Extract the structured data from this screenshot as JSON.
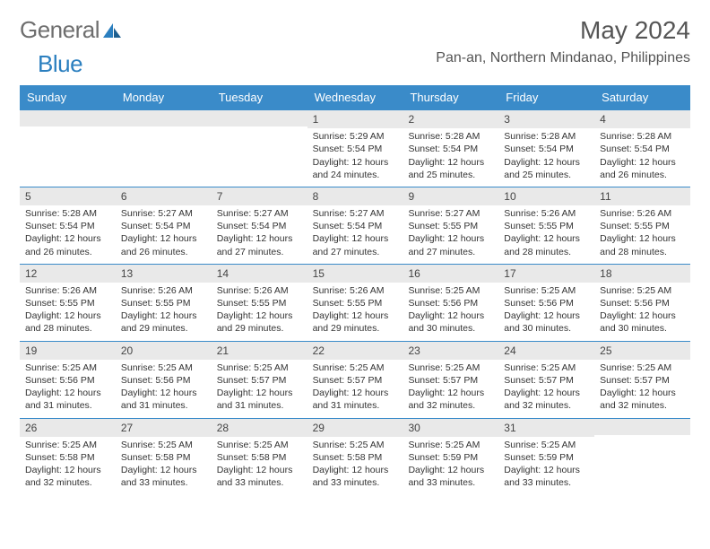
{
  "brand": {
    "part1": "General",
    "part2": "Blue"
  },
  "calendar": {
    "month_title": "May 2024",
    "location": "Pan-an, Northern Mindanao, Philippines",
    "colors": {
      "header_bg": "#3a8bc9",
      "header_text": "#ffffff",
      "daynum_bg": "#e9e9e9",
      "rule": "#3a8bc9",
      "body_text": "#333333",
      "title_text": "#555555"
    },
    "day_headers": [
      "Sunday",
      "Monday",
      "Tuesday",
      "Wednesday",
      "Thursday",
      "Friday",
      "Saturday"
    ],
    "weeks": [
      [
        {
          "n": "",
          "sunrise": "",
          "sunset": "",
          "daylight": ""
        },
        {
          "n": "",
          "sunrise": "",
          "sunset": "",
          "daylight": ""
        },
        {
          "n": "",
          "sunrise": "",
          "sunset": "",
          "daylight": ""
        },
        {
          "n": "1",
          "sunrise": "Sunrise: 5:29 AM",
          "sunset": "Sunset: 5:54 PM",
          "daylight": "Daylight: 12 hours and 24 minutes."
        },
        {
          "n": "2",
          "sunrise": "Sunrise: 5:28 AM",
          "sunset": "Sunset: 5:54 PM",
          "daylight": "Daylight: 12 hours and 25 minutes."
        },
        {
          "n": "3",
          "sunrise": "Sunrise: 5:28 AM",
          "sunset": "Sunset: 5:54 PM",
          "daylight": "Daylight: 12 hours and 25 minutes."
        },
        {
          "n": "4",
          "sunrise": "Sunrise: 5:28 AM",
          "sunset": "Sunset: 5:54 PM",
          "daylight": "Daylight: 12 hours and 26 minutes."
        }
      ],
      [
        {
          "n": "5",
          "sunrise": "Sunrise: 5:28 AM",
          "sunset": "Sunset: 5:54 PM",
          "daylight": "Daylight: 12 hours and 26 minutes."
        },
        {
          "n": "6",
          "sunrise": "Sunrise: 5:27 AM",
          "sunset": "Sunset: 5:54 PM",
          "daylight": "Daylight: 12 hours and 26 minutes."
        },
        {
          "n": "7",
          "sunrise": "Sunrise: 5:27 AM",
          "sunset": "Sunset: 5:54 PM",
          "daylight": "Daylight: 12 hours and 27 minutes."
        },
        {
          "n": "8",
          "sunrise": "Sunrise: 5:27 AM",
          "sunset": "Sunset: 5:54 PM",
          "daylight": "Daylight: 12 hours and 27 minutes."
        },
        {
          "n": "9",
          "sunrise": "Sunrise: 5:27 AM",
          "sunset": "Sunset: 5:55 PM",
          "daylight": "Daylight: 12 hours and 27 minutes."
        },
        {
          "n": "10",
          "sunrise": "Sunrise: 5:26 AM",
          "sunset": "Sunset: 5:55 PM",
          "daylight": "Daylight: 12 hours and 28 minutes."
        },
        {
          "n": "11",
          "sunrise": "Sunrise: 5:26 AM",
          "sunset": "Sunset: 5:55 PM",
          "daylight": "Daylight: 12 hours and 28 minutes."
        }
      ],
      [
        {
          "n": "12",
          "sunrise": "Sunrise: 5:26 AM",
          "sunset": "Sunset: 5:55 PM",
          "daylight": "Daylight: 12 hours and 28 minutes."
        },
        {
          "n": "13",
          "sunrise": "Sunrise: 5:26 AM",
          "sunset": "Sunset: 5:55 PM",
          "daylight": "Daylight: 12 hours and 29 minutes."
        },
        {
          "n": "14",
          "sunrise": "Sunrise: 5:26 AM",
          "sunset": "Sunset: 5:55 PM",
          "daylight": "Daylight: 12 hours and 29 minutes."
        },
        {
          "n": "15",
          "sunrise": "Sunrise: 5:26 AM",
          "sunset": "Sunset: 5:55 PM",
          "daylight": "Daylight: 12 hours and 29 minutes."
        },
        {
          "n": "16",
          "sunrise": "Sunrise: 5:25 AM",
          "sunset": "Sunset: 5:56 PM",
          "daylight": "Daylight: 12 hours and 30 minutes."
        },
        {
          "n": "17",
          "sunrise": "Sunrise: 5:25 AM",
          "sunset": "Sunset: 5:56 PM",
          "daylight": "Daylight: 12 hours and 30 minutes."
        },
        {
          "n": "18",
          "sunrise": "Sunrise: 5:25 AM",
          "sunset": "Sunset: 5:56 PM",
          "daylight": "Daylight: 12 hours and 30 minutes."
        }
      ],
      [
        {
          "n": "19",
          "sunrise": "Sunrise: 5:25 AM",
          "sunset": "Sunset: 5:56 PM",
          "daylight": "Daylight: 12 hours and 31 minutes."
        },
        {
          "n": "20",
          "sunrise": "Sunrise: 5:25 AM",
          "sunset": "Sunset: 5:56 PM",
          "daylight": "Daylight: 12 hours and 31 minutes."
        },
        {
          "n": "21",
          "sunrise": "Sunrise: 5:25 AM",
          "sunset": "Sunset: 5:57 PM",
          "daylight": "Daylight: 12 hours and 31 minutes."
        },
        {
          "n": "22",
          "sunrise": "Sunrise: 5:25 AM",
          "sunset": "Sunset: 5:57 PM",
          "daylight": "Daylight: 12 hours and 31 minutes."
        },
        {
          "n": "23",
          "sunrise": "Sunrise: 5:25 AM",
          "sunset": "Sunset: 5:57 PM",
          "daylight": "Daylight: 12 hours and 32 minutes."
        },
        {
          "n": "24",
          "sunrise": "Sunrise: 5:25 AM",
          "sunset": "Sunset: 5:57 PM",
          "daylight": "Daylight: 12 hours and 32 minutes."
        },
        {
          "n": "25",
          "sunrise": "Sunrise: 5:25 AM",
          "sunset": "Sunset: 5:57 PM",
          "daylight": "Daylight: 12 hours and 32 minutes."
        }
      ],
      [
        {
          "n": "26",
          "sunrise": "Sunrise: 5:25 AM",
          "sunset": "Sunset: 5:58 PM",
          "daylight": "Daylight: 12 hours and 32 minutes."
        },
        {
          "n": "27",
          "sunrise": "Sunrise: 5:25 AM",
          "sunset": "Sunset: 5:58 PM",
          "daylight": "Daylight: 12 hours and 33 minutes."
        },
        {
          "n": "28",
          "sunrise": "Sunrise: 5:25 AM",
          "sunset": "Sunset: 5:58 PM",
          "daylight": "Daylight: 12 hours and 33 minutes."
        },
        {
          "n": "29",
          "sunrise": "Sunrise: 5:25 AM",
          "sunset": "Sunset: 5:58 PM",
          "daylight": "Daylight: 12 hours and 33 minutes."
        },
        {
          "n": "30",
          "sunrise": "Sunrise: 5:25 AM",
          "sunset": "Sunset: 5:59 PM",
          "daylight": "Daylight: 12 hours and 33 minutes."
        },
        {
          "n": "31",
          "sunrise": "Sunrise: 5:25 AM",
          "sunset": "Sunset: 5:59 PM",
          "daylight": "Daylight: 12 hours and 33 minutes."
        },
        {
          "n": "",
          "sunrise": "",
          "sunset": "",
          "daylight": ""
        }
      ]
    ]
  }
}
